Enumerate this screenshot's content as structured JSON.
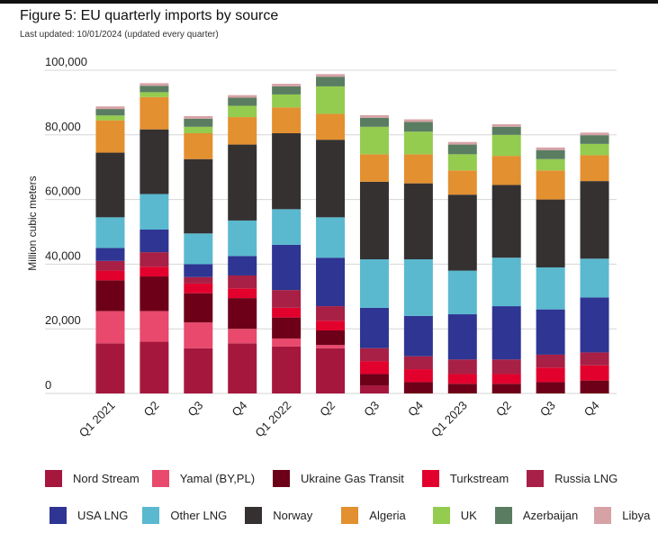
{
  "figure": {
    "title": "Figure 5: EU quarterly imports by source",
    "subtitle": "Last updated: 10/01/2024 (updated every quarter)"
  },
  "chart_data": {
    "type": "bar",
    "stacked": true,
    "title": "Figure 5: EU quarterly imports by source",
    "subtitle": "Last updated: 10/01/2024 (updated every quarter)",
    "xlabel": "",
    "ylabel": "Million cubic meters",
    "ylim": [
      0,
      100000
    ],
    "yticks": [
      0,
      20000,
      40000,
      60000,
      80000,
      100000
    ],
    "ytick_labels": [
      "0",
      "20,000",
      "40,000",
      "60,000",
      "80,000",
      "100,000"
    ],
    "grid": true,
    "legend_position": "bottom",
    "categories": [
      "Q1 2021",
      "Q2",
      "Q3",
      "Q4",
      "Q1 2022",
      "Q2",
      "Q3",
      "Q4",
      "Q1 2023",
      "Q2",
      "Q3",
      "Q4"
    ],
    "series": [
      {
        "name": "Nord Stream",
        "color": "#a6173d",
        "values": [
          15500,
          16000,
          14000,
          15500,
          14500,
          14000,
          2500,
          0,
          0,
          0,
          0,
          0
        ]
      },
      {
        "name": "Yamal (BY,PL)",
        "color": "#e8496c",
        "values": [
          10000,
          9500,
          8000,
          4500,
          2500,
          1000,
          0,
          0,
          0,
          0,
          0,
          0
        ]
      },
      {
        "name": "Ukraine Gas Transit",
        "color": "#6d0018",
        "values": [
          9500,
          10700,
          9000,
          9500,
          6500,
          4500,
          3500,
          3500,
          3000,
          3000,
          3500,
          4000
        ]
      },
      {
        "name": "Turkstream",
        "color": "#e2002d",
        "values": [
          3000,
          3000,
          3000,
          3000,
          3000,
          3000,
          4000,
          4000,
          3000,
          3000,
          4500,
          4700
        ]
      },
      {
        "name": "Russia LNG",
        "color": "#a82045",
        "values": [
          3000,
          4500,
          2000,
          4000,
          5500,
          4500,
          4000,
          4000,
          4500,
          4500,
          4000,
          4000
        ]
      },
      {
        "name": "USA LNG",
        "color": "#2e3592",
        "values": [
          4000,
          7000,
          4000,
          6000,
          14000,
          15000,
          12500,
          12500,
          14000,
          16500,
          14000,
          17000
        ]
      },
      {
        "name": "Other LNG",
        "color": "#5ab9cf",
        "values": [
          9500,
          11000,
          9500,
          11000,
          11000,
          12500,
          15000,
          17500,
          13500,
          15000,
          13000,
          12000
        ]
      },
      {
        "name": "Norway",
        "color": "#353131",
        "values": [
          20000,
          20000,
          23000,
          23500,
          23500,
          24000,
          24000,
          23500,
          23500,
          22500,
          21000,
          24000
        ]
      },
      {
        "name": "Algeria",
        "color": "#e39030",
        "values": [
          10000,
          10000,
          8000,
          8500,
          8000,
          8000,
          8500,
          9000,
          7500,
          9000,
          9000,
          8000
        ]
      },
      {
        "name": "UK",
        "color": "#94cc4f",
        "values": [
          1500,
          1500,
          2000,
          3500,
          4000,
          8500,
          8500,
          7000,
          5000,
          6500,
          3500,
          3500
        ]
      },
      {
        "name": "Azerbaijan",
        "color": "#5a7d62",
        "values": [
          2000,
          2000,
          2500,
          2500,
          2500,
          3000,
          2800,
          3000,
          3000,
          2500,
          2800,
          2700
        ]
      },
      {
        "name": "Libya",
        "color": "#d7a2a6",
        "values": [
          800,
          800,
          800,
          800,
          800,
          800,
          800,
          800,
          800,
          800,
          800,
          800
        ]
      }
    ]
  }
}
